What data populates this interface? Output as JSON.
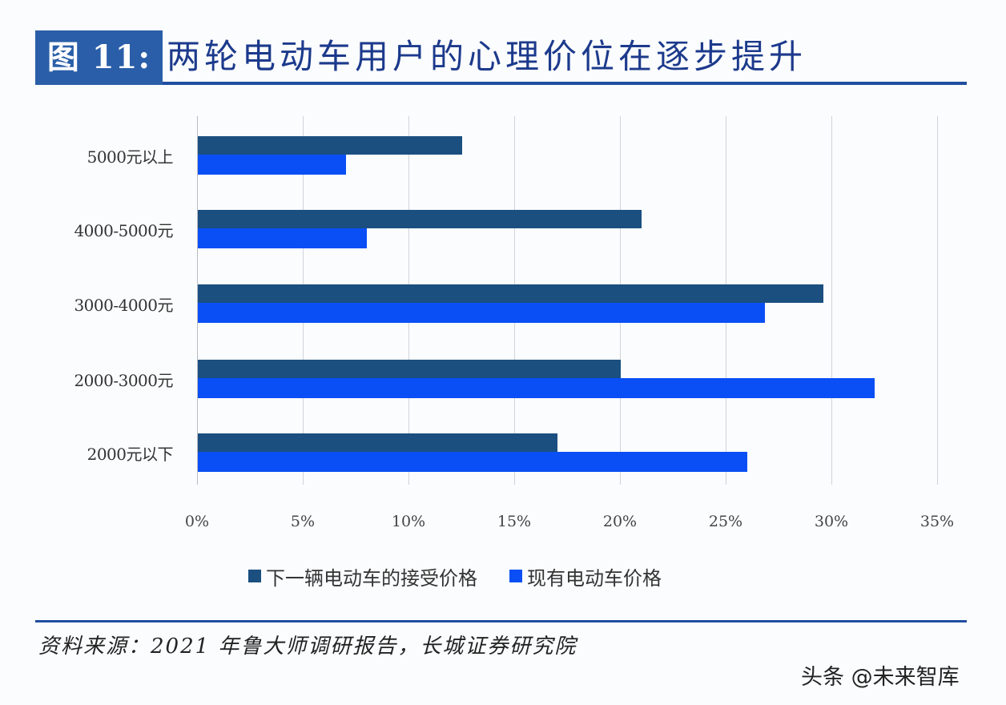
{
  "header": {
    "figure_label": "图 11:",
    "title": "两轮电动车用户的心理价位在逐步提升"
  },
  "footer": {
    "source": "资料来源：2021 年鲁大师调研报告，长城证券研究院",
    "watermark": "头条 @未来智库"
  },
  "colors": {
    "series_next": "#1a4f80",
    "series_current": "#0a4ff5",
    "header_box": "#2a5ea8",
    "rule": "#1f4ea0"
  },
  "chart_data": {
    "type": "bar",
    "orientation": "horizontal",
    "title": "两轮电动车用户的心理价位在逐步提升",
    "categories": [
      "5000元以上",
      "4000-5000元",
      "3000-4000元",
      "2000-3000元",
      "2000元以下"
    ],
    "series": [
      {
        "name": "下一辆电动车的接受价格",
        "color": "#1a4f80",
        "values": [
          12.5,
          21.0,
          29.6,
          20.0,
          17.0
        ]
      },
      {
        "name": "现有电动车价格",
        "color": "#0a4ff5",
        "values": [
          7.0,
          8.0,
          26.8,
          32.0,
          26.0
        ]
      }
    ],
    "xlabel": "",
    "ylabel": "",
    "xlim": [
      0,
      35
    ],
    "x_ticks": [
      "0%",
      "5%",
      "10%",
      "15%",
      "20%",
      "25%",
      "30%",
      "35%"
    ],
    "unit": "%",
    "grid": true,
    "legend_position": "bottom"
  }
}
